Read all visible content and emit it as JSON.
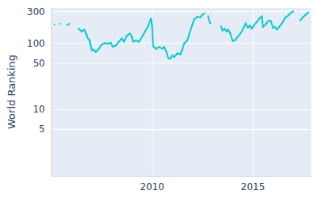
{
  "chart_data": {
    "type": "line",
    "y_label": "World Ranking",
    "color": "#00CED1",
    "log": "y",
    "grid": true,
    "xlim": [
      2005,
      2017.9
    ],
    "xticks": [
      2010,
      2015
    ],
    "ylim": [
      1,
      340
    ],
    "yticks": [
      5,
      10,
      50,
      100,
      300
    ],
    "x": [
      2005.15,
      2005.3,
      2005.45,
      2005.6,
      2005.8,
      2005.9,
      2006.0,
      2006.35,
      2006.5,
      2006.65,
      2006.8,
      2006.9,
      2007.0,
      2007.1,
      2007.2,
      2007.35,
      2007.5,
      2007.65,
      2007.8,
      2007.95,
      2008.05,
      2008.2,
      2008.35,
      2008.5,
      2008.6,
      2008.75,
      2008.9,
      2009.0,
      2009.05,
      2009.2,
      2009.35,
      2009.5,
      2009.65,
      2009.8,
      2009.9,
      2009.95,
      2010.0,
      2010.05,
      2010.2,
      2010.35,
      2010.5,
      2010.6,
      2010.7,
      2010.8,
      2010.9,
      2011.0,
      2011.1,
      2011.25,
      2011.4,
      2011.5,
      2011.6,
      2011.75,
      2011.85,
      2012.0,
      2012.1,
      2012.25,
      2012.4,
      2012.5,
      2012.6,
      2012.7,
      2012.78,
      2012.85,
      2012.9,
      2013.0,
      2013.42,
      2013.5,
      2013.6,
      2013.7,
      2013.78,
      2013.88,
      2014.0,
      2014.1,
      2014.2,
      2014.35,
      2014.5,
      2014.65,
      2014.75,
      2014.85,
      2014.95,
      2015.05,
      2015.2,
      2015.35,
      2015.45,
      2015.5,
      2015.65,
      2015.8,
      2015.9,
      2016.0,
      2016.1,
      2016.2,
      2016.3,
      2016.45,
      2016.6,
      2016.75,
      2016.9,
      2017.0,
      2017.1,
      2017.35,
      2017.45,
      2017.6,
      2017.7,
      2017.75
    ],
    "values": [
      190,
      null,
      195,
      null,
      190,
      195,
      null,
      165,
      150,
      160,
      120,
      110,
      78,
      80,
      73,
      82,
      95,
      100,
      98,
      102,
      88,
      92,
      105,
      118,
      105,
      130,
      140,
      125,
      105,
      110,
      105,
      125,
      150,
      180,
      215,
      235,
      180,
      90,
      82,
      88,
      82,
      88,
      75,
      60,
      58,
      65,
      62,
      70,
      68,
      80,
      100,
      110,
      140,
      190,
      230,
      250,
      245,
      270,
      280,
      null,
      255,
      210,
      200,
      null,
      180,
      155,
      165,
      150,
      160,
      140,
      108,
      110,
      120,
      135,
      160,
      200,
      170,
      185,
      165,
      185,
      210,
      240,
      255,
      175,
      195,
      220,
      215,
      170,
      175,
      160,
      175,
      200,
      240,
      260,
      290,
      300,
      null,
      220,
      240,
      265,
      280,
      290
    ]
  }
}
